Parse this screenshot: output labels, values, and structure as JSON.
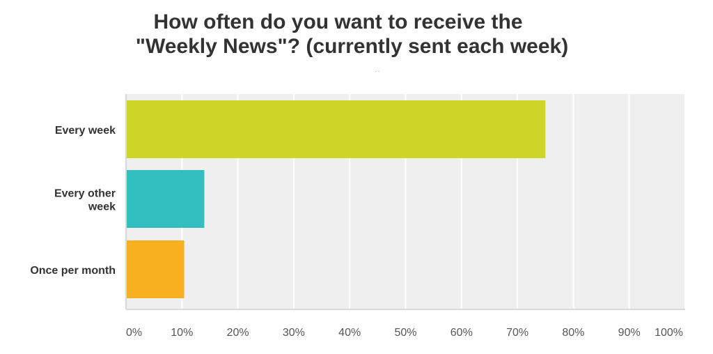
{
  "chart_data": {
    "type": "bar",
    "orientation": "horizontal",
    "title": "How often do you want to receive the \"Weekly News\"? (currently sent each week)",
    "title_lines": [
      "How often do you want to receive the",
      "\"Weekly News\"? (currently sent each week)"
    ],
    "categories": [
      [
        "Every week"
      ],
      [
        "Every other",
        "week"
      ],
      [
        "Once per month"
      ]
    ],
    "values": [
      75.0,
      14.0,
      10.4
    ],
    "colors": [
      "#cdd626",
      "#33bfc0",
      "#f8b020"
    ],
    "xlim": [
      0,
      100
    ],
    "ticks": [
      "0%",
      "10%",
      "20%",
      "30%",
      "40%",
      "50%",
      "60%",
      "70%",
      "80%",
      "90%",
      "100%"
    ],
    "tick_values": [
      0,
      10,
      20,
      30,
      40,
      50,
      60,
      70,
      80,
      90,
      100
    ],
    "grid": true,
    "legend": "none",
    "plot_background": "#efefef",
    "grid_color": "#ffffff",
    "axis_color": "#d9d9d9"
  }
}
